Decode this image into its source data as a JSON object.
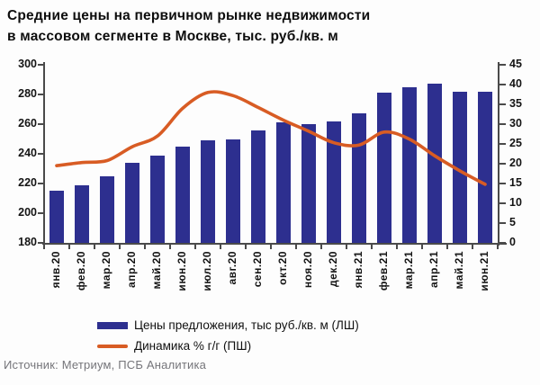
{
  "title": {
    "line1": "Средние цены на первичном рынке недвижимости",
    "line2": "в массовом сегменте в Москве, тыс. руб./кв. м"
  },
  "source": "Источник: Метриум, ПСБ Аналитика",
  "chart_data": {
    "type": "bar+line",
    "categories": [
      "янв.20",
      "фев.20",
      "мар.20",
      "апр.20",
      "май.20",
      "июн.20",
      "июл.20",
      "авг.20",
      "сен.20",
      "окт.20",
      "ноя.20",
      "дек.20",
      "янв.21",
      "фев.21",
      "мар.21",
      "апр.21",
      "май.21",
      "июн.21"
    ],
    "series": [
      {
        "name": "Цены предложения, тыс руб./кв. м (ЛШ)",
        "type": "bar",
        "axis": "left",
        "color": "#2d2f8f",
        "values": [
          215,
          219,
          225,
          234,
          239,
          245,
          249,
          250,
          256,
          261,
          260,
          262,
          267,
          281,
          285,
          287,
          282,
          282
        ]
      },
      {
        "name": "Динамика % г/г (ПШ)",
        "type": "line",
        "axis": "right",
        "color": "#d85c24",
        "values": [
          19.5,
          20.3,
          20.8,
          24.3,
          27,
          34,
          38,
          37.2,
          34.2,
          31,
          28.2,
          25.3,
          24.7,
          28,
          26.2,
          22,
          18.2,
          14.8
        ]
      }
    ],
    "left_axis": {
      "min": 180,
      "max": 300,
      "step": 20,
      "ticks": [
        300,
        280,
        260,
        240,
        220,
        200,
        180
      ]
    },
    "right_axis": {
      "min": 0,
      "max": 45,
      "step": 5,
      "ticks": [
        45,
        40,
        35,
        30,
        25,
        20,
        15,
        10,
        5,
        0
      ]
    },
    "grid": false,
    "legend_position": "bottom"
  }
}
